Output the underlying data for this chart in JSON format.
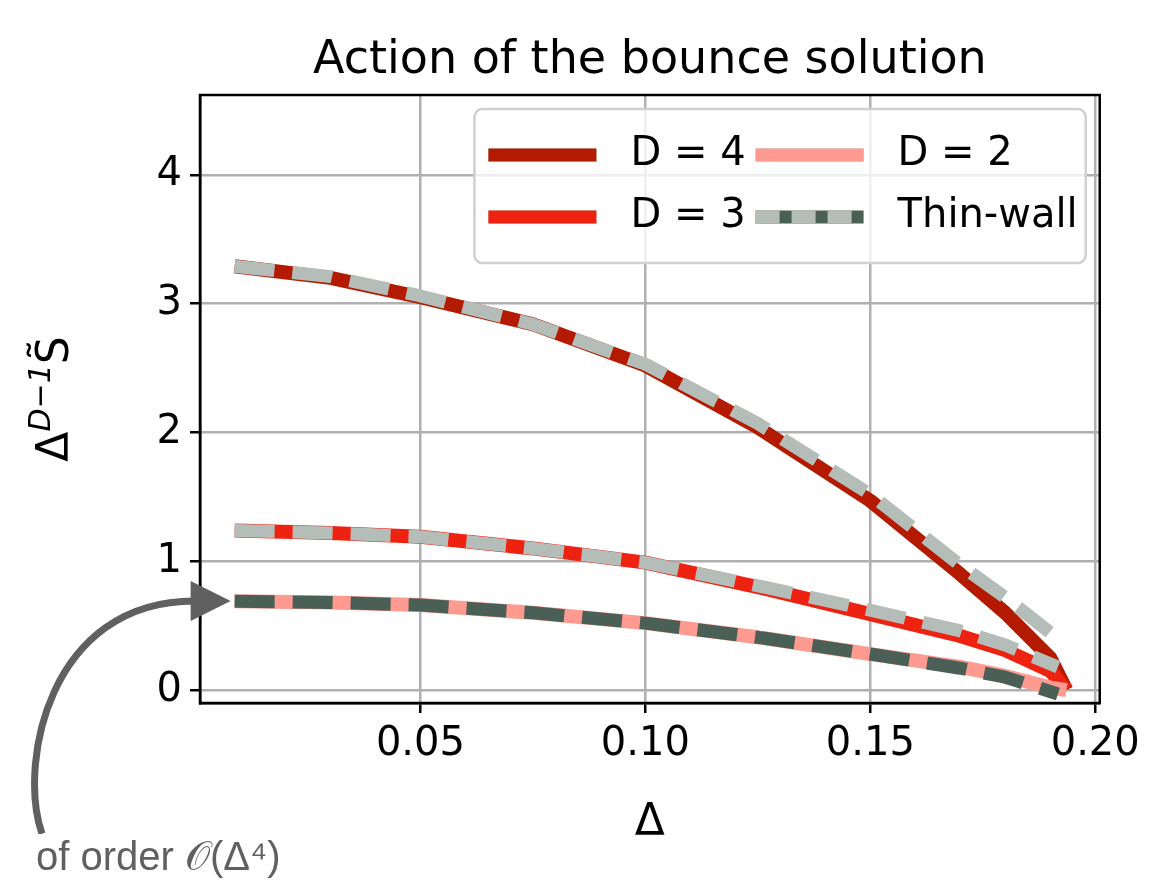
{
  "chart_data": {
    "type": "line",
    "title": "Action of the bounce solution",
    "xlabel": "Δ",
    "ylabel": "Δ$^{D−1}$S̃",
    "xlim": [
      0.001,
      0.201
    ],
    "ylim": [
      -0.1,
      4.62
    ],
    "xticks": [
      0.05,
      {
        "value": 0.1,
        "label": "0.10"
      },
      0.15,
      {
        "value": 0.2,
        "label": "0.20"
      }
    ],
    "yticks": [
      0,
      1,
      2,
      3,
      4
    ],
    "grid": true,
    "legend": "top right",
    "marker": "none",
    "annotations": [
      "of order 𝒪(Δ⁴)"
    ],
    "series": [
      {
        "name": "D = 4",
        "color": "#b31a00",
        "x": [
          0.0087,
          0.03,
          0.05,
          0.075,
          0.1,
          0.125,
          0.15,
          0.17,
          0.18,
          0.19,
          0.1936
        ],
        "values": [
          3.29,
          3.2,
          3.05,
          2.84,
          2.52,
          2.04,
          1.47,
          0.9,
          0.6,
          0.25,
          0.0
        ]
      },
      {
        "name": "D = 3",
        "color": "#ee2211",
        "x": [
          0.0087,
          0.03,
          0.05,
          0.075,
          0.1,
          0.125,
          0.15,
          0.17,
          0.18,
          0.19,
          0.1936
        ],
        "values": [
          1.24,
          1.22,
          1.19,
          1.1,
          0.99,
          0.8,
          0.59,
          0.42,
          0.31,
          0.15,
          0.0
        ]
      },
      {
        "name": "D = 2",
        "color": "#ff9a90",
        "x": [
          0.0087,
          0.03,
          0.05,
          0.075,
          0.1,
          0.125,
          0.15,
          0.17,
          0.18,
          0.19,
          0.1936
        ],
        "values": [
          0.69,
          0.68,
          0.66,
          0.6,
          0.52,
          0.41,
          0.28,
          0.18,
          0.11,
          0.02,
          0.0
        ]
      },
      {
        "name": "Thin-wall",
        "color": "#b5bdb8",
        "line_style": "dashed",
        "x": [
          0.0087,
          0.03,
          0.05,
          0.075,
          0.1,
          0.125,
          0.15,
          0.17,
          0.18,
          0.1917
        ],
        "values": [
          3.29,
          3.21,
          3.06,
          2.84,
          2.53,
          2.07,
          1.52,
          0.97,
          0.72,
          0.4
        ]
      },
      {
        "color": "#b5bdb8",
        "line_style": "dashed",
        "x": [
          0.0087,
          0.03,
          0.05,
          0.075,
          0.1,
          0.125,
          0.15,
          0.17,
          0.18,
          0.1917
        ],
        "values": [
          1.24,
          1.22,
          1.19,
          1.1,
          0.99,
          0.81,
          0.62,
          0.46,
          0.35,
          0.18
        ]
      },
      {
        "color": "#4a5f55",
        "line_style": "dashed",
        "x": [
          0.0087,
          0.03,
          0.05,
          0.075,
          0.1,
          0.125,
          0.15,
          0.17,
          0.18,
          0.1917
        ],
        "values": [
          0.69,
          0.68,
          0.66,
          0.6,
          0.52,
          0.41,
          0.28,
          0.17,
          0.1,
          -0.03
        ]
      }
    ]
  }
}
